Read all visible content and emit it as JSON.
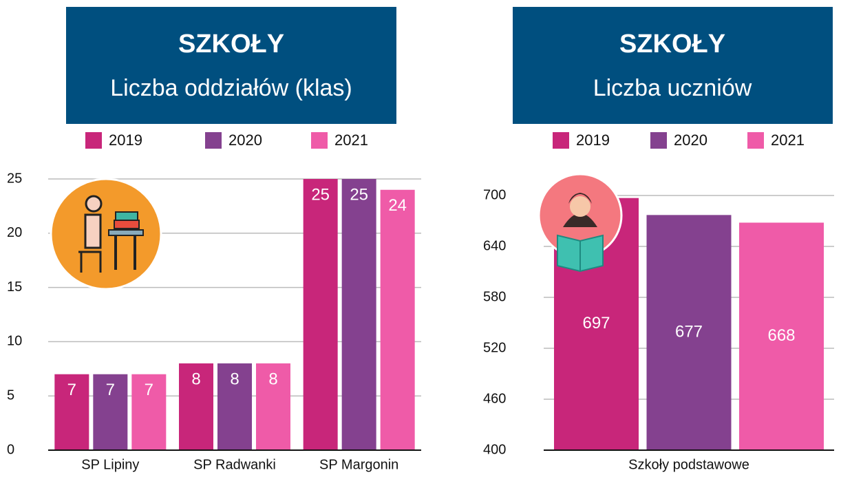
{
  "chart_data": [
    {
      "type": "bar",
      "title": "SZKOŁY",
      "subtitle": "Liczba oddziałów (klas)",
      "categories": [
        "SP Lipiny",
        "SP Radwanki",
        "SP Margonin"
      ],
      "series": [
        {
          "name": "2019",
          "color": "#c8267a",
          "values": [
            7,
            8,
            25
          ]
        },
        {
          "name": "2020",
          "color": "#84418f",
          "values": [
            7,
            8,
            25
          ]
        },
        {
          "name": "2021",
          "color": "#ef5ba8",
          "values": [
            7,
            8,
            24
          ]
        }
      ],
      "ylim": [
        0,
        25
      ],
      "yticks": [
        0,
        5,
        10,
        15,
        20,
        25
      ],
      "grid": true
    },
    {
      "type": "bar",
      "title": "SZKOŁY",
      "subtitle": "Liczba uczniów",
      "categories": [
        "Szkoły podstawowe"
      ],
      "series": [
        {
          "name": "2019",
          "color": "#c8267a",
          "values": [
            697
          ]
        },
        {
          "name": "2020",
          "color": "#84418f",
          "values": [
            677
          ]
        },
        {
          "name": "2021",
          "color": "#ef5ba8",
          "values": [
            668
          ]
        }
      ],
      "ylim": [
        400,
        700
      ],
      "yticks": [
        400,
        460,
        520,
        580,
        640,
        700
      ],
      "grid": true
    }
  ]
}
